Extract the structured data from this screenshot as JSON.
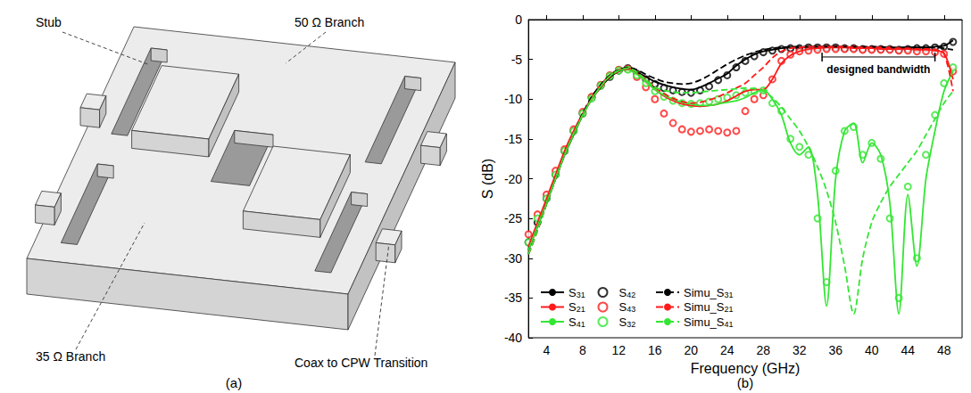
{
  "diagram": {
    "caption": "(a)",
    "callouts": [
      {
        "label": "Stub"
      },
      {
        "label": "50 Ω Branch"
      },
      {
        "label": "35 Ω Branch"
      },
      {
        "label": "Coax to CPW Transition"
      }
    ]
  },
  "chart_data": {
    "type": "line",
    "caption": "(b)",
    "xlabel": "Frequency (GHz)",
    "ylabel": "S (dB)",
    "xlim": [
      2,
      50
    ],
    "xticks": [
      4,
      8,
      12,
      16,
      20,
      24,
      28,
      32,
      36,
      40,
      44,
      48
    ],
    "ylim": [
      -40,
      0
    ],
    "yticks": [
      -40,
      -35,
      -30,
      -25,
      -20,
      -15,
      -10,
      -5,
      0
    ],
    "grid": false,
    "legend": "lower left",
    "x": [
      2,
      3,
      4,
      5,
      6,
      7,
      8,
      9,
      10,
      11,
      12,
      13,
      14,
      15,
      16,
      17,
      18,
      19,
      20,
      21,
      22,
      23,
      24,
      25,
      26,
      27,
      28,
      29,
      30,
      31,
      32,
      33,
      34,
      35,
      36,
      37,
      38,
      39,
      40,
      41,
      42,
      43,
      44,
      45,
      46,
      47,
      48,
      49
    ],
    "series": [
      {
        "name": "S31",
        "type": "line",
        "color": "#000000",
        "line_style": "solid",
        "marker": "none",
        "values": [
          -29,
          -26,
          -23,
          -20,
          -17,
          -14.5,
          -12,
          -10,
          -8.5,
          -7.3,
          -6.5,
          -6.2,
          -6.6,
          -7.2,
          -7.8,
          -8.2,
          -8.5,
          -8.7,
          -8.8,
          -8.5,
          -8,
          -7.4,
          -6.8,
          -5.8,
          -5,
          -4.4,
          -4,
          -3.8,
          -3.6,
          -3.5,
          -3.5,
          -3.4,
          -3.4,
          -3.4,
          -3.4,
          -3.4,
          -3.5,
          -3.5,
          -3.5,
          -3.5,
          -3.6,
          -3.6,
          -3.5,
          -3.5,
          -3.5,
          -3.4,
          -3.3,
          -2.6
        ]
      },
      {
        "name": "S21",
        "type": "line",
        "color": "#ff1a1a",
        "line_style": "solid",
        "marker": "none",
        "values": [
          -28.5,
          -25.5,
          -22.5,
          -19.5,
          -16.5,
          -14,
          -11.8,
          -9.8,
          -8.2,
          -7,
          -6.3,
          -6.1,
          -6.8,
          -7.8,
          -8.8,
          -9.6,
          -10.2,
          -10.6,
          -10.8,
          -10.9,
          -10.8,
          -10.6,
          -10.2,
          -9.6,
          -9,
          -8.8,
          -8.8,
          -7.5,
          -5.5,
          -4.5,
          -4,
          -3.7,
          -3.6,
          -3.5,
          -3.5,
          -3.5,
          -3.6,
          -3.6,
          -3.6,
          -3.7,
          -3.7,
          -3.7,
          -3.7,
          -3.8,
          -3.8,
          -3.9,
          -4.2,
          -7.5
        ]
      },
      {
        "name": "S41",
        "type": "line",
        "color": "#33e633",
        "line_style": "solid",
        "marker": "none",
        "values": [
          -29,
          -26,
          -23,
          -20,
          -17,
          -14.5,
          -12,
          -10,
          -8.4,
          -7.1,
          -6.4,
          -6.3,
          -6.9,
          -7.8,
          -8.8,
          -9.5,
          -10,
          -10.4,
          -10.6,
          -10.8,
          -10.8,
          -10.6,
          -10.4,
          -10.2,
          -9.8,
          -9.2,
          -8.8,
          -10,
          -12,
          -15.5,
          -17,
          -16,
          -22,
          -36,
          -20,
          -14,
          -13,
          -18,
          -15.5,
          -17,
          -23,
          -37,
          -22,
          -31,
          -20,
          -14,
          -9,
          -6.5
        ]
      },
      {
        "name": "S42",
        "type": "scatter",
        "color": "#000000",
        "line_style": "none",
        "marker": "circle",
        "values": [
          -28,
          -25.5,
          -22.5,
          -19.5,
          -16.5,
          -14,
          -11.8,
          -9.8,
          -8.3,
          -7.2,
          -6.4,
          -6.1,
          -6.8,
          -7.5,
          -8.1,
          -8.6,
          -8.9,
          -9.1,
          -9.2,
          -8.9,
          -8.4,
          -7.6,
          -7,
          -6,
          -5.2,
          -4.6,
          -4.1,
          -3.9,
          -3.7,
          -3.6,
          -3.6,
          -3.5,
          -3.5,
          -3.5,
          -3.5,
          -3.6,
          -3.6,
          -3.7,
          -3.7,
          -3.7,
          -3.7,
          -3.8,
          -3.7,
          -3.6,
          -3.6,
          -3.5,
          -3.4,
          -2.8
        ]
      },
      {
        "name": "S43",
        "type": "scatter",
        "color": "#ff1a1a",
        "line_style": "none",
        "marker": "circle",
        "values": [
          -27,
          -24.5,
          -22,
          -19,
          -16.3,
          -13.8,
          -11.6,
          -9.7,
          -8.2,
          -7,
          -6.3,
          -6.2,
          -7.2,
          -8.5,
          -10,
          -11.8,
          -13,
          -13.8,
          -14.1,
          -14,
          -13.8,
          -14,
          -14.2,
          -14,
          -11.5,
          -10,
          -9.5,
          -7.5,
          -5.2,
          -4.4,
          -4,
          -3.9,
          -3.8,
          -3.7,
          -3.7,
          -3.7,
          -3.7,
          -3.8,
          -3.8,
          -3.8,
          -3.8,
          -3.9,
          -3.9,
          -4,
          -4,
          -4.1,
          -4.3,
          -6.5
        ]
      },
      {
        "name": "S32",
        "type": "scatter",
        "color": "#33e633",
        "line_style": "none",
        "marker": "circle",
        "values": [
          -28,
          -25,
          -22.5,
          -19.5,
          -16.5,
          -14,
          -11.8,
          -9.9,
          -8.3,
          -7.1,
          -6.4,
          -6.3,
          -7,
          -8,
          -9,
          -9.7,
          -10.2,
          -10.5,
          -10.6,
          -10.5,
          -10.3,
          -10,
          -9.8,
          -9.5,
          -9.2,
          -9,
          -8.9,
          -10.5,
          -11.5,
          -15,
          -16,
          -17,
          -25,
          -33,
          -19,
          -14,
          -13.5,
          -17,
          -15.5,
          -17.5,
          -25,
          -35,
          -21,
          -30,
          -17,
          -12,
          -8,
          -6
        ]
      },
      {
        "name": "Simu_S31",
        "type": "line",
        "color": "#000000",
        "line_style": "dashed",
        "marker": "none",
        "values": [
          -29.5,
          -26.5,
          -23.2,
          -20,
          -17,
          -14.3,
          -11.8,
          -9.7,
          -8.2,
          -7,
          -6.3,
          -6,
          -6.3,
          -6.9,
          -7.4,
          -7.8,
          -8,
          -8.1,
          -8,
          -7.6,
          -7,
          -6.3,
          -5.6,
          -5,
          -4.5,
          -4.1,
          -3.8,
          -3.6,
          -3.5,
          -3.4,
          -3.4,
          -3.4,
          -3.4,
          -3.4,
          -3.4,
          -3.4,
          -3.4,
          -3.4,
          -3.4,
          -3.4,
          -3.5,
          -3.5,
          -3.5,
          -3.5,
          -3.5,
          -3.5,
          -3.6,
          -3.8
        ]
      },
      {
        "name": "Simu_S21",
        "type": "line",
        "color": "#ff1a1a",
        "line_style": "dashed",
        "marker": "none",
        "values": [
          -29.5,
          -26.5,
          -23,
          -20,
          -17,
          -14.3,
          -12,
          -10,
          -8.5,
          -7.2,
          -6.5,
          -6.2,
          -6.6,
          -7.5,
          -8.5,
          -9.3,
          -9.9,
          -10.3,
          -10.5,
          -10.4,
          -10.1,
          -9.7,
          -9.2,
          -8.6,
          -8,
          -7,
          -6,
          -4.8,
          -4,
          -3.6,
          -3.5,
          -3.4,
          -3.4,
          -3.4,
          -3.4,
          -3.4,
          -3.5,
          -3.5,
          -3.5,
          -3.5,
          -3.6,
          -3.6,
          -3.6,
          -3.7,
          -3.7,
          -3.8,
          -4.3,
          -9
        ]
      },
      {
        "name": "Simu_S41",
        "type": "line",
        "color": "#33e633",
        "line_style": "dashed",
        "marker": "none",
        "values": [
          -29.5,
          -26.5,
          -23.2,
          -20,
          -17,
          -14.3,
          -12,
          -10,
          -8.4,
          -7.1,
          -6.4,
          -6.1,
          -6.6,
          -7.6,
          -8.5,
          -8.9,
          -9.1,
          -9.2,
          -9.2,
          -9.1,
          -9,
          -8.9,
          -8.8,
          -8.7,
          -8.6,
          -8.7,
          -9,
          -9.8,
          -11,
          -12.5,
          -14,
          -16,
          -18.5,
          -21.5,
          -25.5,
          -31,
          -37,
          -30,
          -25.5,
          -23,
          -21,
          -19.5,
          -18,
          -16.5,
          -14.5,
          -12.5,
          -10.5,
          -9
        ]
      }
    ],
    "annotations": [
      {
        "text": "designed bandwidth",
        "x": [
          34.5,
          47
        ],
        "y": -4.7
      }
    ]
  }
}
